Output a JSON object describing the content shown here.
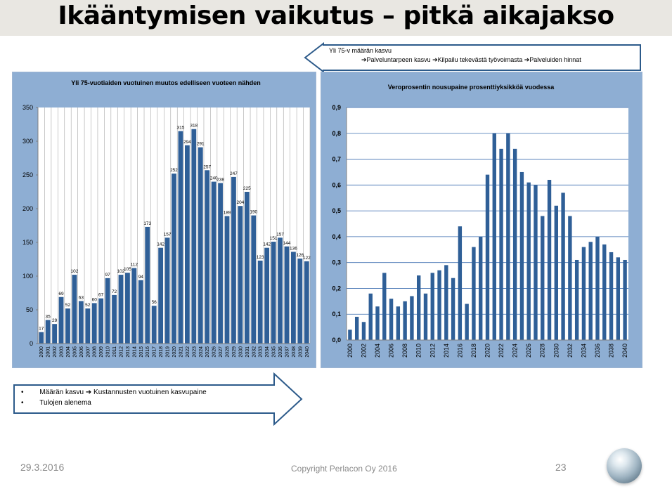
{
  "slide": {
    "title": "Ikääntymisen vaikutus – pitkä aikajakso",
    "date": "29.3.2016",
    "copyright": "Copyright Perlacon Oy 2016",
    "page_number": "23"
  },
  "top_callout": {
    "line1": "Yli 75-v määrän kasvu",
    "line2": "➔Palveluntarpeen kasvu ➔Kilpailu tekevästä työvoimasta ➔Palveluiden hinnat"
  },
  "bottom_callout": {
    "bullets": [
      "Määrän kasvu ➔ Kustannusten vuotuinen kasvupaine",
      "Tulojen alenema"
    ]
  },
  "colors": {
    "bar": "#2f5f97",
    "plot_bg_right": "#ffffff",
    "panel_bg": "#8eaed3"
  },
  "chart_data": [
    {
      "type": "bar",
      "title": "Yli 75-vuotiaiden vuotuinen muutos edelliseen vuoteen nähden",
      "xlabel": "",
      "ylabel": "",
      "ylim": [
        0,
        350
      ],
      "yticks": [
        "0",
        "50",
        "100",
        "150",
        "200",
        "250",
        "300",
        "350"
      ],
      "grid": "vertical",
      "categories": [
        "2000",
        "2001",
        "2002",
        "2003",
        "2004",
        "2005",
        "2006",
        "2007",
        "2008",
        "2009",
        "2010",
        "2011",
        "2012",
        "2013",
        "2014",
        "2015",
        "2016",
        "2017",
        "2018",
        "2019",
        "2020",
        "2021",
        "2022",
        "2023",
        "2024",
        "2025",
        "2026",
        "2027",
        "2028",
        "2029",
        "2030",
        "2031",
        "2032",
        "2033",
        "2034",
        "2035",
        "2036",
        "2037",
        "2038",
        "2039",
        "2040"
      ],
      "values": [
        17,
        35,
        29,
        69,
        52,
        102,
        63,
        52,
        60,
        67,
        97,
        72,
        102,
        105,
        112,
        94,
        173,
        56,
        142,
        157,
        252,
        315,
        294,
        318,
        291,
        257,
        240,
        238,
        189,
        247,
        204,
        225,
        190,
        123,
        142,
        151,
        157,
        144,
        136,
        126,
        122
      ],
      "data_labels": true
    },
    {
      "type": "bar",
      "title": "Veroprosentin  nousupaine  prosenttiyksikköä  vuodessa",
      "xlabel": "",
      "ylabel": "",
      "ylim": [
        0,
        0.9
      ],
      "yticks": [
        "0,0",
        "0,1",
        "0,2",
        "0,3",
        "0,4",
        "0,5",
        "0,6",
        "0,7",
        "0,8",
        "0,9"
      ],
      "xticks": [
        "2000",
        "2002",
        "2004",
        "2006",
        "2008",
        "2010",
        "2012",
        "2014",
        "2016",
        "2018",
        "2020",
        "2022",
        "2024",
        "2026",
        "2028",
        "2030",
        "2032",
        "2034",
        "2036",
        "2038",
        "2040"
      ],
      "grid": "horizontal",
      "categories": [
        "2000",
        "2001",
        "2002",
        "2003",
        "2004",
        "2005",
        "2006",
        "2007",
        "2008",
        "2009",
        "2010",
        "2011",
        "2012",
        "2013",
        "2014",
        "2015",
        "2016",
        "2017",
        "2018",
        "2019",
        "2020",
        "2021",
        "2022",
        "2023",
        "2024",
        "2025",
        "2026",
        "2027",
        "2028",
        "2029",
        "2030",
        "2031",
        "2032",
        "2033",
        "2034",
        "2035",
        "2036",
        "2037",
        "2038",
        "2039",
        "2040"
      ],
      "values": [
        0.04,
        0.09,
        0.07,
        0.18,
        0.13,
        0.26,
        0.16,
        0.13,
        0.15,
        0.17,
        0.25,
        0.18,
        0.26,
        0.27,
        0.29,
        0.24,
        0.44,
        0.14,
        0.36,
        0.4,
        0.64,
        0.8,
        0.74,
        0.8,
        0.74,
        0.65,
        0.61,
        0.6,
        0.48,
        0.62,
        0.52,
        0.57,
        0.48,
        0.31,
        0.36,
        0.38,
        0.4,
        0.37,
        0.34,
        0.32,
        0.31
      ]
    }
  ]
}
